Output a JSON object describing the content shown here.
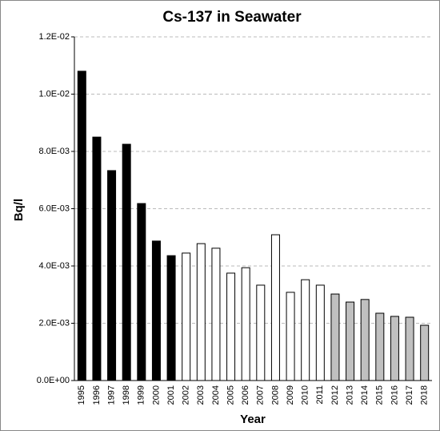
{
  "chart_data": {
    "type": "bar",
    "title": "Cs-137 in Seawater",
    "x_label": "Year",
    "y_label": "Bq/l",
    "categories": [
      "1995",
      "1996",
      "1997",
      "1998",
      "1999",
      "2000",
      "2001",
      "2002",
      "2003",
      "2004",
      "2005",
      "2006",
      "2007",
      "2008",
      "2009",
      "2010",
      "2011",
      "2012",
      "2013",
      "2014",
      "2015",
      "2016",
      "2017",
      "2018"
    ],
    "values": [
      0.0108,
      0.0085,
      0.00733,
      0.00825,
      0.00618,
      0.00487,
      0.00436,
      0.00445,
      0.00478,
      0.00462,
      0.00375,
      0.00394,
      0.00333,
      0.00509,
      0.00308,
      0.00352,
      0.00333,
      0.00302,
      0.00274,
      0.00283,
      0.00235,
      0.00224,
      0.00221,
      0.00193
    ],
    "colors": [
      "#000000",
      "#000000",
      "#000000",
      "#000000",
      "#000000",
      "#000000",
      "#000000",
      "#ffffff",
      "#ffffff",
      "#ffffff",
      "#ffffff",
      "#ffffff",
      "#ffffff",
      "#ffffff",
      "#ffffff",
      "#ffffff",
      "#ffffff",
      "#c0c0c0",
      "#c0c0c0",
      "#c0c0c0",
      "#c0c0c0",
      "#c0c0c0",
      "#c0c0c0",
      "#c0c0c0"
    ],
    "ylim": [
      0,
      0.012
    ],
    "yticks": [
      {
        "value": 0,
        "label": "0.0E+00"
      },
      {
        "value": 0.002,
        "label": "2.0E-03"
      },
      {
        "value": 0.004,
        "label": "4.0E-03"
      },
      {
        "value": 0.006,
        "label": "6.0E-03"
      },
      {
        "value": 0.008,
        "label": "8.0E-03"
      },
      {
        "value": 0.01,
        "label": "1.0E-02"
      },
      {
        "value": 0.012,
        "label": "1.2E-02"
      }
    ],
    "grid": true
  }
}
